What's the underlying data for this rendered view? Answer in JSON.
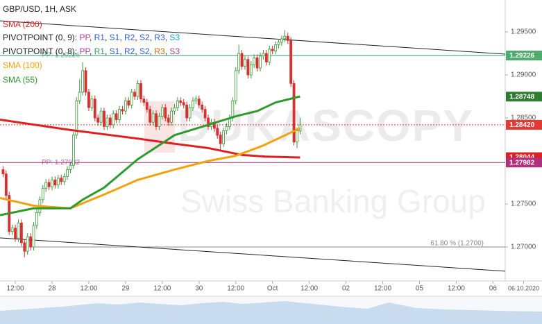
{
  "chart_data": {
    "type": "candlestick",
    "title": "GBP/USD, 1H, ASK",
    "up_color": "#3a9a3a",
    "down_color": "#d83030",
    "x": [
      -16,
      -15,
      -14,
      -13,
      -12,
      -11,
      -10,
      -9,
      -8,
      -7,
      -6,
      -5,
      -4,
      -3,
      -2,
      -1,
      0,
      1,
      2,
      3,
      4,
      5,
      6,
      7,
      8,
      9,
      10,
      11,
      12,
      13,
      14,
      15,
      16,
      17,
      18,
      19,
      20,
      21,
      22,
      23,
      24,
      25,
      26,
      27,
      28,
      29,
      30,
      31,
      32,
      33,
      34,
      35,
      36,
      37,
      38,
      39,
      40,
      41,
      42,
      43,
      44,
      45,
      46,
      47,
      48,
      49,
      50,
      51,
      52,
      53,
      54,
      55,
      56,
      57,
      58,
      59,
      60,
      61,
      62,
      63,
      64,
      65,
      66,
      67,
      68,
      69,
      70,
      71,
      72,
      73,
      74,
      75,
      76,
      77,
      78,
      79,
      80,
      81
    ],
    "open": [
      1.279,
      1.2785,
      1.276,
      1.2718,
      1.2722,
      1.271,
      1.2728,
      1.2705,
      1.2695,
      1.2712,
      1.27,
      1.2725,
      1.274,
      1.2755,
      1.2768,
      1.2775,
      1.277,
      1.2778,
      1.2772,
      1.278,
      1.2776,
      1.2782,
      1.279,
      1.2795,
      1.283,
      1.287,
      1.288,
      1.2905,
      1.288,
      1.2862,
      1.2872,
      1.285,
      1.2845,
      1.2858,
      1.284,
      1.285,
      1.2842,
      1.2855,
      1.2848,
      1.286,
      1.2858,
      1.287,
      1.2865,
      1.288,
      1.2875,
      1.289,
      1.2872,
      1.2868,
      1.286,
      1.2845,
      1.2855,
      1.284,
      1.2852,
      1.2862,
      1.285,
      1.2845,
      1.2858,
      1.2862,
      1.287,
      1.2868,
      1.2865,
      1.285,
      1.2862,
      1.287,
      1.2872,
      1.2865,
      1.286,
      1.285,
      1.284,
      1.2845,
      1.2838,
      1.283,
      1.282,
      1.2835,
      1.284,
      1.285,
      1.287,
      1.2905,
      1.2925,
      1.291,
      1.2918,
      1.29,
      1.2912,
      1.292,
      1.2908,
      1.2922,
      1.2925,
      1.2915,
      1.293,
      1.2928,
      1.2935,
      1.2938,
      1.2942,
      1.2945,
      1.294,
      1.289,
      1.2822,
      1.2835
    ],
    "high": [
      1.2794,
      1.2789,
      1.2764,
      1.2726,
      1.2726,
      1.2732,
      1.2732,
      1.2709,
      1.2716,
      1.2716,
      1.2729,
      1.2744,
      1.2759,
      1.2772,
      1.2779,
      1.2779,
      1.2782,
      1.2782,
      1.2784,
      1.2784,
      1.2786,
      1.2794,
      1.2799,
      1.2834,
      1.2874,
      1.2895,
      1.2915,
      1.2909,
      1.2884,
      1.2876,
      1.2876,
      1.2854,
      1.2862,
      1.2862,
      1.2854,
      1.2854,
      1.2859,
      1.2859,
      1.2864,
      1.2864,
      1.2874,
      1.2874,
      1.2884,
      1.2884,
      1.2894,
      1.2894,
      1.2876,
      1.2872,
      1.2864,
      1.2859,
      1.2859,
      1.2856,
      1.2866,
      1.2866,
      1.2854,
      1.2862,
      1.2866,
      1.2874,
      1.2874,
      1.2872,
      1.2869,
      1.2866,
      1.2874,
      1.2876,
      1.2876,
      1.2869,
      1.2864,
      1.2854,
      1.2849,
      1.2849,
      1.2842,
      1.2834,
      1.2839,
      1.2844,
      1.2854,
      1.2874,
      1.2909,
      1.2935,
      1.2929,
      1.2922,
      1.2922,
      1.2916,
      1.2924,
      1.2924,
      1.2926,
      1.2929,
      1.2929,
      1.2934,
      1.2934,
      1.2939,
      1.2942,
      1.2946,
      1.2952,
      1.2949,
      1.2944,
      1.2894,
      1.2839,
      1.285
    ],
    "low": [
      1.2781,
      1.2756,
      1.2714,
      1.2714,
      1.2706,
      1.2706,
      1.2701,
      1.2688,
      1.2691,
      1.2696,
      1.2696,
      1.2721,
      1.2736,
      1.2751,
      1.2764,
      1.2766,
      1.2766,
      1.2768,
      1.2768,
      1.2772,
      1.2772,
      1.2778,
      1.2786,
      1.2791,
      1.2826,
      1.2866,
      1.2876,
      1.2876,
      1.2858,
      1.2858,
      1.2846,
      1.2841,
      1.2841,
      1.2836,
      1.2836,
      1.2838,
      1.2838,
      1.2844,
      1.2844,
      1.2854,
      1.2854,
      1.2861,
      1.2861,
      1.2871,
      1.2871,
      1.2868,
      1.2864,
      1.2856,
      1.2841,
      1.2841,
      1.2836,
      1.2836,
      1.2848,
      1.2846,
      1.2841,
      1.2841,
      1.2854,
      1.2858,
      1.2864,
      1.2861,
      1.2846,
      1.2846,
      1.2858,
      1.2866,
      1.2861,
      1.2856,
      1.2846,
      1.2836,
      1.2836,
      1.2834,
      1.2826,
      1.2813,
      1.2816,
      1.2831,
      1.2836,
      1.2846,
      1.2866,
      1.2901,
      1.2906,
      1.2906,
      1.2896,
      1.2896,
      1.2908,
      1.2904,
      1.2904,
      1.2918,
      1.2911,
      1.2911,
      1.2924,
      1.2924,
      1.2931,
      1.2934,
      1.2938,
      1.2936,
      1.2886,
      1.2818,
      1.2815,
      1.2831
    ],
    "close": [
      1.2785,
      1.276,
      1.2718,
      1.2722,
      1.271,
      1.2728,
      1.2705,
      1.2695,
      1.2712,
      1.27,
      1.2725,
      1.274,
      1.2755,
      1.2768,
      1.2775,
      1.277,
      1.2778,
      1.2772,
      1.278,
      1.2776,
      1.2782,
      1.279,
      1.2795,
      1.283,
      1.287,
      1.288,
      1.2905,
      1.288,
      1.2862,
      1.2872,
      1.285,
      1.2845,
      1.2858,
      1.284,
      1.285,
      1.2842,
      1.2855,
      1.2848,
      1.286,
      1.2858,
      1.287,
      1.2865,
      1.288,
      1.2875,
      1.289,
      1.2872,
      1.2868,
      1.286,
      1.2845,
      1.2855,
      1.284,
      1.2852,
      1.2862,
      1.285,
      1.2845,
      1.2858,
      1.2862,
      1.287,
      1.2868,
      1.2865,
      1.285,
      1.2862,
      1.287,
      1.2872,
      1.2865,
      1.286,
      1.285,
      1.284,
      1.2845,
      1.2838,
      1.283,
      1.282,
      1.2835,
      1.284,
      1.285,
      1.287,
      1.2905,
      1.2925,
      1.291,
      1.2918,
      1.29,
      1.2912,
      1.292,
      1.2908,
      1.2922,
      1.2925,
      1.2915,
      1.293,
      1.2928,
      1.2935,
      1.2938,
      1.2942,
      1.2945,
      1.294,
      1.289,
      1.2822,
      1.2835,
      1.2842
    ],
    "series": [
      {
        "name": "SMA (200)",
        "color": "#e02020",
        "x": [
          -17,
          6,
          28,
          40,
          51,
          62,
          70,
          81
        ],
        "values": [
          1.2848,
          1.2836,
          1.2826,
          1.282,
          1.2815,
          1.2807,
          1.2805,
          1.2804
        ]
      },
      {
        "name": "SMA (100)",
        "color": "#f2a20c",
        "x": [
          -17,
          -6,
          6,
          17,
          28,
          40,
          51,
          60,
          69,
          75,
          81
        ],
        "values": [
          1.2757,
          1.2748,
          1.2745,
          1.2761,
          1.2778,
          1.279,
          1.28,
          1.2806,
          1.2818,
          1.2828,
          1.2838
        ]
      },
      {
        "name": "SMA (55)",
        "color": "#2e9a2e",
        "x": [
          -17,
          -6,
          6,
          10,
          17,
          28,
          40,
          51,
          60,
          67,
          73,
          81
        ],
        "values": [
          1.2737,
          1.2745,
          1.2745,
          1.2755,
          1.2769,
          1.2802,
          1.283,
          1.2842,
          1.2852,
          1.2858,
          1.2868,
          1.2875
        ]
      }
    ],
    "pivots": [
      {
        "name": "PIVOTPOINT (0, 9): ",
        "separator": ", ",
        "parts": [
          {
            "text": "PP",
            "color": "#b03a9a"
          },
          {
            "text": "R1",
            "color": "#2e5bd6"
          },
          {
            "text": "S1",
            "color": "#2e5bd6"
          },
          {
            "text": "R2",
            "color": "#2e5bd6"
          },
          {
            "text": "S2",
            "color": "#2e5bd6"
          },
          {
            "text": "R3",
            "color": "#2e5bd6"
          },
          {
            "text": "S3",
            "color": "#17a2b8"
          }
        ]
      },
      {
        "name": "PIVOTPOINT (0, 8): ",
        "separator": ", ",
        "parts": [
          {
            "text": "PP",
            "color": "#b03a9a"
          },
          {
            "text": "R1",
            "color": "#2e9e6a"
          },
          {
            "text": "S1",
            "color": "#2e5bd6"
          },
          {
            "text": "R2",
            "color": "#2e5bd6"
          },
          {
            "text": "S2",
            "color": "#2e5bd6"
          },
          {
            "text": "R3",
            "color": "#d2691e"
          },
          {
            "text": "S3",
            "color": "#b03a9a"
          }
        ]
      }
    ],
    "trendlines": [
      {
        "x": [
          -17,
          148
        ],
        "values": [
          1.29629,
          1.29242
        ],
        "color": "#222222"
      },
      {
        "x": [
          -17,
          148
        ],
        "values": [
          1.27106,
          1.26719
        ],
        "color": "#222222"
      }
    ],
    "levels": [
      {
        "label": "PP: 1.29226",
        "value": 1.29226,
        "color": "#2e9e6a",
        "style": "solid",
        "label_side": "left"
      },
      {
        "label": "PP: 1.27982",
        "value": 1.27982,
        "color": "#a0307a",
        "style": "solid",
        "label_side": "left"
      },
      {
        "label": "61.80 % (1.2700)",
        "value": 1.27,
        "color": "#888888",
        "style": "solid",
        "label_side": "right"
      },
      {
        "value": 1.2842,
        "color": "#e53935",
        "style": "dashed"
      }
    ],
    "price_labels": [
      {
        "value": 1.29226,
        "label": "1.29226",
        "color": "#4cae6a"
      },
      {
        "value": 1.28748,
        "label": "1.28748",
        "color": "#2e7d32"
      },
      {
        "value": 1.28044,
        "label": "1.28044",
        "color": "#e02020"
      },
      {
        "value": 1.2842,
        "label": "1.28420",
        "color": "#e53935"
      },
      {
        "value": 1.27982,
        "label": "1.27982",
        "color": "#b0307e"
      }
    ],
    "watermark": [
      "DUKASCOPY",
      "Swiss Banking Group"
    ],
    "xlim": [
      -17,
      148
    ],
    "ylim": [
      1.26605,
      1.29871
    ],
    "xticks": [
      {
        "value": -12,
        "label": "12:00"
      },
      {
        "value": 0,
        "label": "28"
      },
      {
        "value": 12,
        "label": "12:00"
      },
      {
        "value": 24,
        "label": "29"
      },
      {
        "value": 36,
        "label": "12:00"
      },
      {
        "value": 48,
        "label": "30"
      },
      {
        "value": 60,
        "label": "12:00"
      },
      {
        "value": 72,
        "label": "Oct"
      },
      {
        "value": 84,
        "label": "12:00"
      },
      {
        "value": 96,
        "label": "02"
      },
      {
        "value": 108,
        "label": "12:00"
      },
      {
        "value": 120,
        "label": "05"
      },
      {
        "value": 132,
        "label": "12:00"
      },
      {
        "value": 144,
        "label": "06"
      },
      {
        "value": 154,
        "label": "06.10.2020"
      }
    ],
    "yticks": [
      {
        "value": 1.295,
        "label": "1.29500"
      },
      {
        "value": 1.29,
        "label": "1.29000"
      },
      {
        "value": 1.285,
        "label": "1.28500"
      },
      {
        "value": 1.275,
        "label": "1.27500"
      },
      {
        "value": 1.27,
        "label": "1.27000"
      }
    ],
    "grid": false
  }
}
